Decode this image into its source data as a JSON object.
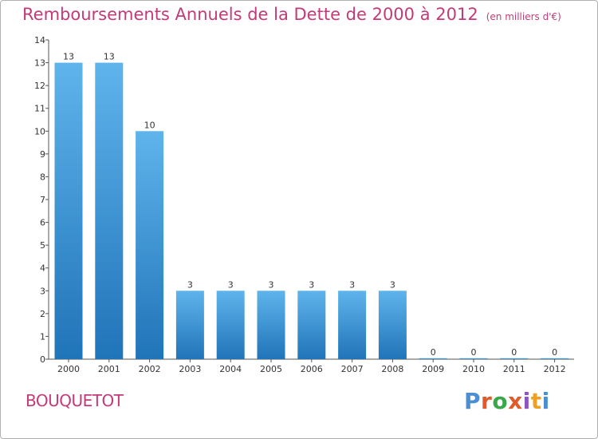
{
  "title": "Remboursements Annuels de la Dette de 2000 à 2012",
  "unit": "(en milliers d'€)",
  "commune": "BOUQUETOT",
  "logo_text": "Proxiti",
  "colors": {
    "title": "#c43a78",
    "bar_top": "#5fb4ec",
    "bar_bottom": "#2074b8",
    "axis": "#555555",
    "logo": [
      "#4a8fd4",
      "#e05a2a",
      "#3aa84a",
      "#e05a2a",
      "#8a56c2",
      "#f0a020",
      "#4a8fd4"
    ]
  },
  "chart_data": {
    "type": "bar",
    "categories": [
      "2000",
      "2001",
      "2002",
      "2003",
      "2004",
      "2005",
      "2006",
      "2007",
      "2008",
      "2009",
      "2010",
      "2011",
      "2012"
    ],
    "values": [
      13,
      13,
      10,
      3,
      3,
      3,
      3,
      3,
      3,
      0,
      0,
      0,
      0
    ],
    "y_ticks": [
      "0",
      "1",
      "2",
      "3",
      "4",
      "5",
      "6",
      "7",
      "8",
      "9",
      "10",
      "11",
      "12",
      "13",
      "14"
    ],
    "ylim": [
      0,
      14
    ],
    "grid": false,
    "title": "Remboursements Annuels de la Dette de 2000 à 2012",
    "xlabel": "",
    "ylabel": ""
  }
}
